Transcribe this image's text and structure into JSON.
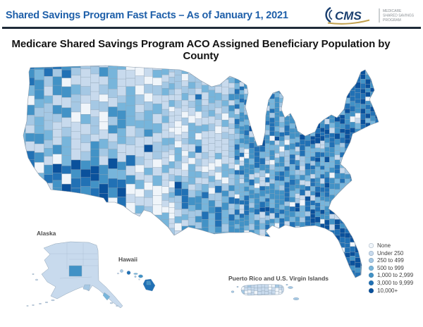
{
  "header": {
    "title": "Shared Savings Program Fast Facts – As of January 1, 2021",
    "logo": {
      "acronym": "CMS",
      "tagline_lines": [
        "MEDICARE",
        "SHARED SAVINGS",
        "PROGRAM"
      ]
    }
  },
  "map": {
    "title": "Medicare Shared Savings Program ACO Assigned Beneficiary Population by County",
    "inset_labels": {
      "alaska": "Alaska",
      "hawaii": "Hawaii",
      "puerto_rico": "Puerto Rico and U.S. Virgin Islands"
    }
  },
  "legend": {
    "items": [
      {
        "label": "None",
        "color": "#f0f5fa"
      },
      {
        "label": "Under 250",
        "color": "#c8daed"
      },
      {
        "label": "250 to 499",
        "color": "#a5c8e4"
      },
      {
        "label": "500 to 999",
        "color": "#77b5db"
      },
      {
        "label": "1,000 to 2,999",
        "color": "#4292c6"
      },
      {
        "label": "3,000 to 9,999",
        "color": "#2171b5"
      },
      {
        "label": "10,000+",
        "color": "#0a519c"
      }
    ]
  },
  "colors": {
    "header_text": "#1e5fa9",
    "rule": "#1f2b38",
    "logo_navy": "#1b4070",
    "logo_gold": "#c2a14d",
    "county_border": "#8fa3b5",
    "coast_border": "#8796a6",
    "label_gray": "#4c4c4c"
  }
}
